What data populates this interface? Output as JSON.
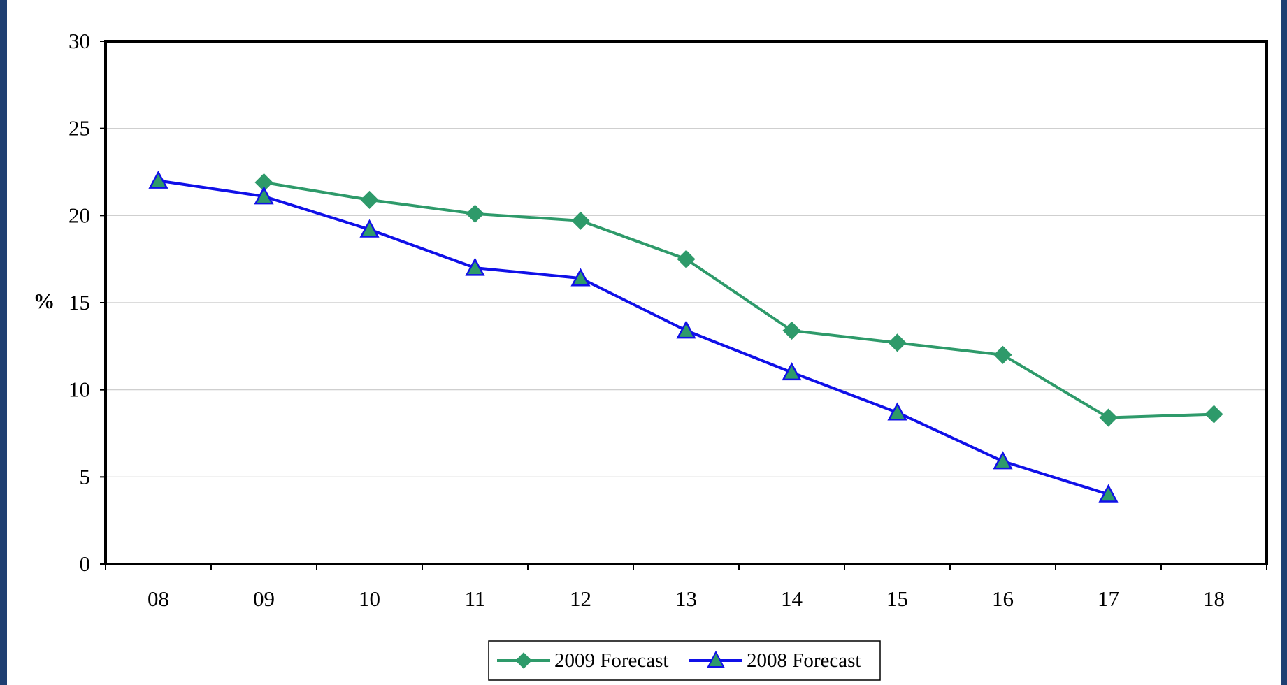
{
  "colors": {
    "frame": "#1f3f72",
    "grid": "#c8c8c8",
    "axis": "#000000",
    "series_2009_line": "#2e9a6a",
    "series_2009_marker": "#2e9a6a",
    "series_2008_line": "#1010e8",
    "series_2008_marker_fill": "#2e9a6a",
    "series_2008_marker_stroke": "#1010e8"
  },
  "chart_data": {
    "type": "line",
    "title": "",
    "xlabel": "",
    "ylabel": "%",
    "categories": [
      "08",
      "09",
      "10",
      "11",
      "12",
      "13",
      "14",
      "15",
      "16",
      "17",
      "18"
    ],
    "ylim": [
      0,
      30
    ],
    "yticks": [
      0,
      5,
      10,
      15,
      20,
      25,
      30
    ],
    "grid": true,
    "legend_position": "bottom-center",
    "series": [
      {
        "name": "2009 Forecast",
        "marker": "diamond",
        "values": [
          null,
          21.9,
          20.9,
          20.1,
          19.7,
          17.5,
          13.4,
          12.7,
          12.0,
          8.4,
          8.6
        ]
      },
      {
        "name": "2008 Forecast",
        "marker": "triangle",
        "values": [
          22.0,
          21.1,
          19.2,
          17.0,
          16.4,
          13.4,
          11.0,
          8.7,
          5.9,
          4.0,
          null
        ]
      }
    ]
  }
}
